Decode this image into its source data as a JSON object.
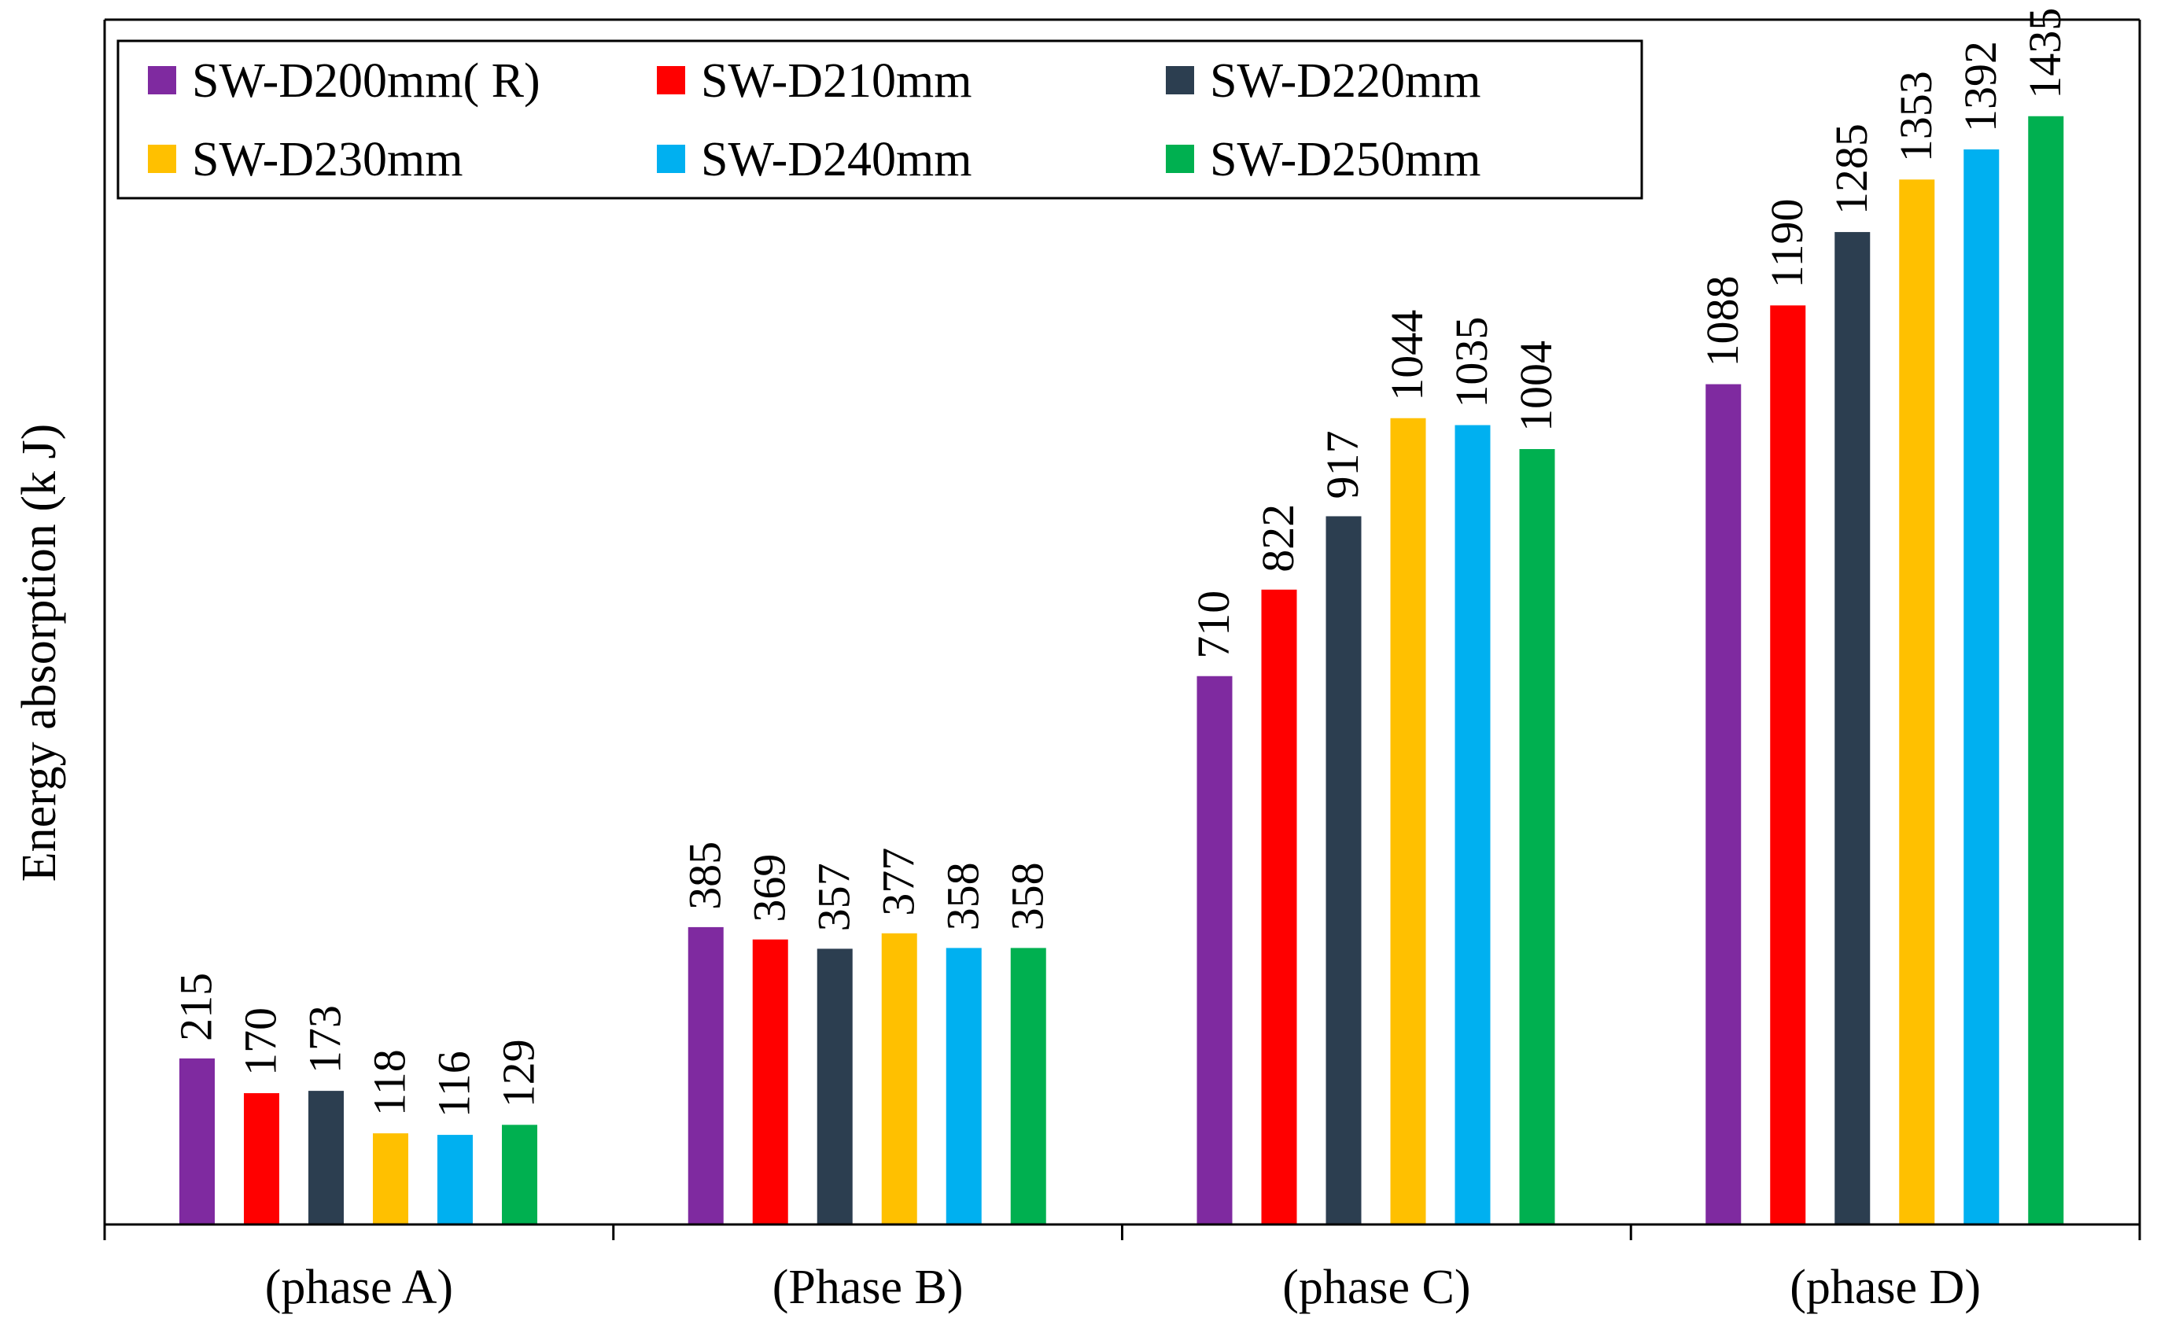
{
  "chart_data": {
    "type": "bar",
    "title": "",
    "xlabel": "",
    "ylabel": "Energy absorption (k J)",
    "ylim": [
      0,
      1560
    ],
    "grid": false,
    "legend_position": "top-left",
    "categories": [
      "(phase A)",
      "(Phase B)",
      "(phase C)",
      "(phase D)"
    ],
    "series": [
      {
        "name": "SW-D200mm( R)",
        "color": "#7F2AA0",
        "values": [
          215,
          385,
          710,
          1088
        ]
      },
      {
        "name": "SW-D210mm",
        "color": "#FF0000",
        "values": [
          170,
          369,
          822,
          1190
        ]
      },
      {
        "name": "SW-D220mm",
        "color": "#2C3E50",
        "values": [
          173,
          357,
          917,
          1285
        ]
      },
      {
        "name": "SW-D230mm",
        "color": "#FFC000",
        "values": [
          118,
          377,
          1044,
          1353
        ]
      },
      {
        "name": "SW-D240mm",
        "color": "#00B0F0",
        "values": [
          116,
          358,
          1035,
          1392
        ]
      },
      {
        "name": "SW-D250mm",
        "color": "#00B050",
        "values": [
          129,
          358,
          1004,
          1435
        ]
      }
    ]
  }
}
